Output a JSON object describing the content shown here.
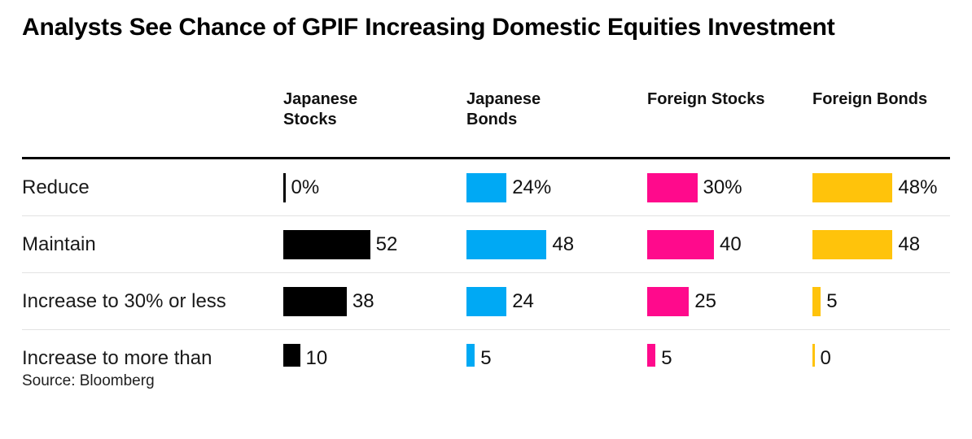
{
  "title": "Analysts See Chance of GPIF Increasing Domestic Equities Investment",
  "source": "Source: Bloomberg",
  "chart_data": {
    "type": "bar",
    "title": "Analysts See Chance of GPIF Increasing Domestic Equities Investment",
    "orientation": "horizontal",
    "layout": "small-multiples-table",
    "categories": [
      "Reduce",
      "Maintain",
      "Increase to 30% or less",
      "Increase to more than"
    ],
    "series": [
      {
        "name": "Japanese Stocks",
        "color": "#000000",
        "values": [
          0,
          52,
          38,
          10
        ],
        "labels": [
          "0%",
          "52",
          "38",
          "10"
        ]
      },
      {
        "name": "Japanese Bonds",
        "color": "#00a9f4",
        "values": [
          24,
          48,
          24,
          5
        ],
        "labels": [
          "24%",
          "48",
          "24",
          "5"
        ]
      },
      {
        "name": "Foreign Stocks",
        "color": "#ff0a8c",
        "values": [
          30,
          40,
          25,
          5
        ],
        "labels": [
          "30%",
          "40",
          "25",
          "5"
        ]
      },
      {
        "name": "Foreign Bonds",
        "color": "#ffc30b",
        "values": [
          48,
          48,
          5,
          0
        ],
        "labels": [
          "48%",
          "48",
          "5",
          "0"
        ]
      }
    ],
    "value_unit": "percent of analysts surveyed",
    "xlim": [
      0,
      55
    ],
    "grid": false,
    "legend_position": "column-headers",
    "source": "Source: Bloomberg"
  }
}
